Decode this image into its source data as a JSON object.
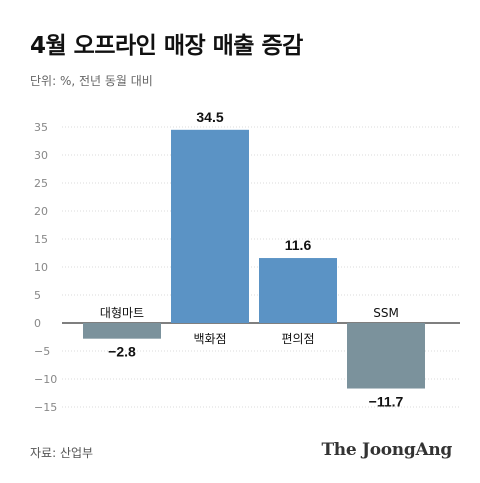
{
  "title": "4월 오프라인 매장 매출 증감",
  "subtitle": "단위: %, 전년 동월 대비",
  "source": "자료: 산업부",
  "logo": "The JoongAng",
  "colors": {
    "positive": "#5b93c5",
    "negative": "#7b929c",
    "axis": "#333333",
    "grid": "#d0d0d0"
  },
  "chart_data": {
    "type": "bar",
    "categories": [
      "대형마트",
      "백화점",
      "편의점",
      "SSM"
    ],
    "values": [
      -2.8,
      34.5,
      11.6,
      -11.7
    ],
    "value_labels": [
      "−2.8",
      "34.5",
      "11.6",
      "−11.7"
    ],
    "yticks": [
      35,
      30,
      25,
      20,
      15,
      10,
      5,
      0,
      -5,
      -10,
      -15
    ],
    "ytick_labels": [
      "35",
      "30",
      "25",
      "20",
      "15",
      "10",
      "5",
      "0",
      "−5",
      "−10",
      "−15"
    ],
    "ylim": [
      -15,
      35
    ],
    "title": "4월 오프라인 매장 매출 증감",
    "xlabel": "",
    "ylabel": ""
  }
}
